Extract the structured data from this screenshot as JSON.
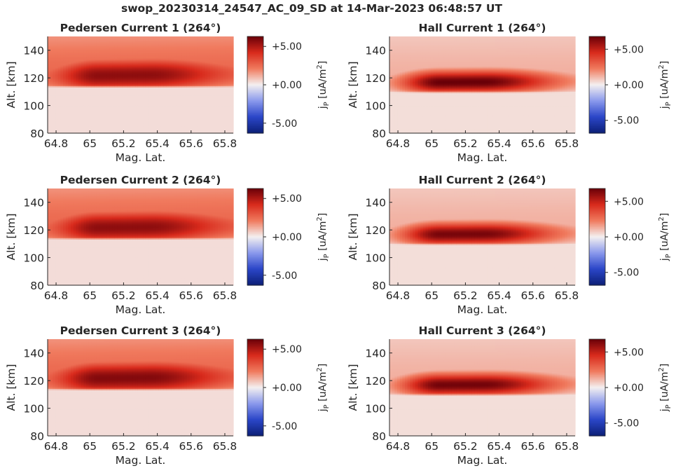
{
  "figure_title": "swop_20230314_24547_AC_09_SD at 14-Mar-2023 06:48:57 UT",
  "chart_data": [
    {
      "type": "heatmap",
      "title": "Pedersen Current 1 (264°)",
      "xlabel": "Mag. Lat.",
      "ylabel": "Alt. [km]",
      "xlim": [
        64.75,
        65.85
      ],
      "ylim": [
        80,
        150
      ],
      "xticks": [
        "64.8",
        "65",
        "65.2",
        "65.4",
        "65.6",
        "65.8"
      ],
      "xtick_values": [
        64.8,
        65.0,
        65.2,
        65.4,
        65.6,
        65.8
      ],
      "yticks": [
        "80",
        "100",
        "120",
        "140"
      ],
      "ytick_values": [
        80,
        100,
        120,
        140
      ],
      "colorbar_label": "j_P [uA/m^2]",
      "colorbar_ticks": [
        "+5.00",
        "+0.00",
        "-5.00"
      ],
      "colorbar_tick_values": [
        5,
        0,
        -5
      ],
      "clim": [
        -6.3,
        6.3
      ],
      "colormap": [
        "#0c1f77",
        "#2b46c8",
        "#8a99ec",
        "#f4f0f0",
        "#f07a5e",
        "#d82a1c",
        "#690008"
      ],
      "layer": {
        "base_alt": 122,
        "slope_per_deg": 1.5,
        "thickness": 9,
        "edge": 115,
        "background": 0.35,
        "peak": 5.6,
        "overhead": 2.2,
        "core": [
          65.05,
          65.35
        ]
      }
    },
    {
      "type": "heatmap",
      "title": "Hall Current 1 (264°)",
      "xlabel": "Mag. Lat.",
      "ylabel": "Alt. [km]",
      "xlim": [
        64.75,
        65.85
      ],
      "ylim": [
        80,
        150
      ],
      "xticks": [
        "64.8",
        "65",
        "65.2",
        "65.4",
        "65.6",
        "65.8"
      ],
      "xtick_values": [
        64.8,
        65.0,
        65.2,
        65.4,
        65.6,
        65.8
      ],
      "yticks": [
        "80",
        "100",
        "120",
        "140"
      ],
      "ytick_values": [
        80,
        100,
        120,
        140
      ],
      "colorbar_label": "j_P [uA/m^2]",
      "colorbar_ticks": [
        "+5.00",
        "+0.00",
        "-5.00"
      ],
      "colorbar_tick_values": [
        5,
        0,
        -5
      ],
      "clim": [
        -6.8,
        6.8
      ],
      "colormap": [
        "#0c1f77",
        "#2b46c8",
        "#8a99ec",
        "#f4f0f0",
        "#f07a5e",
        "#d82a1c",
        "#690008"
      ],
      "layer": {
        "base_alt": 117,
        "slope_per_deg": 1.0,
        "thickness": 6,
        "edge": 111,
        "background": 0.35,
        "peak": 6.8,
        "overhead": 0.9,
        "core": [
          65.05,
          65.3
        ]
      }
    },
    {
      "type": "heatmap",
      "title": "Pedersen Current 2 (264°)",
      "xlabel": "Mag. Lat.",
      "ylabel": "Alt. [km]",
      "xlim": [
        64.75,
        65.85
      ],
      "ylim": [
        80,
        150
      ],
      "xticks": [
        "64.8",
        "65",
        "65.2",
        "65.4",
        "65.6",
        "65.8"
      ],
      "xtick_values": [
        64.8,
        65.0,
        65.2,
        65.4,
        65.6,
        65.8
      ],
      "yticks": [
        "80",
        "100",
        "120",
        "140"
      ],
      "ytick_values": [
        80,
        100,
        120,
        140
      ],
      "colorbar_label": "j_P [uA/m^2]",
      "colorbar_ticks": [
        "+5.00",
        "+0.00",
        "-5.00"
      ],
      "colorbar_tick_values": [
        5,
        0,
        -5
      ],
      "clim": [
        -6.3,
        6.3
      ],
      "colormap": [
        "#0c1f77",
        "#2b46c8",
        "#8a99ec",
        "#f4f0f0",
        "#f07a5e",
        "#d82a1c",
        "#690008"
      ],
      "layer": {
        "base_alt": 122,
        "slope_per_deg": 1.5,
        "thickness": 9,
        "edge": 115,
        "background": 0.35,
        "peak": 5.6,
        "overhead": 2.2,
        "core": [
          65.05,
          65.35
        ]
      }
    },
    {
      "type": "heatmap",
      "title": "Hall Current 2 (264°)",
      "xlabel": "Mag. Lat.",
      "ylabel": "Alt. [km]",
      "xlim": [
        64.75,
        65.85
      ],
      "ylim": [
        80,
        150
      ],
      "xticks": [
        "64.8",
        "65",
        "65.2",
        "65.4",
        "65.6",
        "65.8"
      ],
      "xtick_values": [
        64.8,
        65.0,
        65.2,
        65.4,
        65.6,
        65.8
      ],
      "yticks": [
        "80",
        "100",
        "120",
        "140"
      ],
      "ytick_values": [
        80,
        100,
        120,
        140
      ],
      "colorbar_label": "j_P [uA/m^2]",
      "colorbar_ticks": [
        "+5.00",
        "+0.00",
        "-5.00"
      ],
      "colorbar_tick_values": [
        5,
        0,
        -5
      ],
      "clim": [
        -6.8,
        6.8
      ],
      "colormap": [
        "#0c1f77",
        "#2b46c8",
        "#8a99ec",
        "#f4f0f0",
        "#f07a5e",
        "#d82a1c",
        "#690008"
      ],
      "layer": {
        "base_alt": 117,
        "slope_per_deg": 1.0,
        "thickness": 6,
        "edge": 111,
        "background": 0.35,
        "peak": 6.5,
        "overhead": 0.9,
        "core": [
          65.05,
          65.3
        ]
      }
    },
    {
      "type": "heatmap",
      "title": "Pedersen Current 3 (264°)",
      "xlabel": "Mag. Lat.",
      "ylabel": "Alt. [km]",
      "xlim": [
        64.75,
        65.85
      ],
      "ylim": [
        80,
        150
      ],
      "xticks": [
        "64.8",
        "65",
        "65.2",
        "65.4",
        "65.6",
        "65.8"
      ],
      "xtick_values": [
        64.8,
        65.0,
        65.2,
        65.4,
        65.6,
        65.8
      ],
      "yticks": [
        "80",
        "100",
        "120",
        "140"
      ],
      "ytick_values": [
        80,
        100,
        120,
        140
      ],
      "colorbar_label": "j_P [uA/m^2]",
      "colorbar_ticks": [
        "+5.00",
        "+0.00",
        "-5.00"
      ],
      "colorbar_tick_values": [
        5,
        0,
        -5
      ],
      "clim": [
        -6.3,
        6.3
      ],
      "colormap": [
        "#0c1f77",
        "#2b46c8",
        "#8a99ec",
        "#f4f0f0",
        "#f07a5e",
        "#d82a1c",
        "#690008"
      ],
      "layer": {
        "base_alt": 122,
        "slope_per_deg": 1.5,
        "thickness": 9,
        "edge": 115,
        "background": 0.35,
        "peak": 5.8,
        "overhead": 2.2,
        "core": [
          65.05,
          65.35
        ]
      }
    },
    {
      "type": "heatmap",
      "title": "Hall Current 3 (264°)",
      "xlabel": "Mag. Lat.",
      "ylabel": "Alt. [km]",
      "xlim": [
        64.75,
        65.85
      ],
      "ylim": [
        80,
        150
      ],
      "xticks": [
        "64.8",
        "65",
        "65.2",
        "65.4",
        "65.6",
        "65.8"
      ],
      "xtick_values": [
        64.8,
        65.0,
        65.2,
        65.4,
        65.6,
        65.8
      ],
      "yticks": [
        "80",
        "100",
        "120",
        "140"
      ],
      "ytick_values": [
        80,
        100,
        120,
        140
      ],
      "colorbar_label": "j_P [uA/m^2]",
      "colorbar_ticks": [
        "+5.00",
        "+0.00",
        "-5.00"
      ],
      "colorbar_tick_values": [
        5,
        0,
        -5
      ],
      "clim": [
        -6.8,
        6.8
      ],
      "colormap": [
        "#0c1f77",
        "#2b46c8",
        "#8a99ec",
        "#f4f0f0",
        "#f07a5e",
        "#d82a1c",
        "#690008"
      ],
      "layer": {
        "base_alt": 117,
        "slope_per_deg": 1.0,
        "thickness": 6,
        "edge": 111,
        "background": 0.35,
        "peak": 6.6,
        "overhead": 0.9,
        "core": [
          65.05,
          65.3
        ]
      }
    }
  ]
}
